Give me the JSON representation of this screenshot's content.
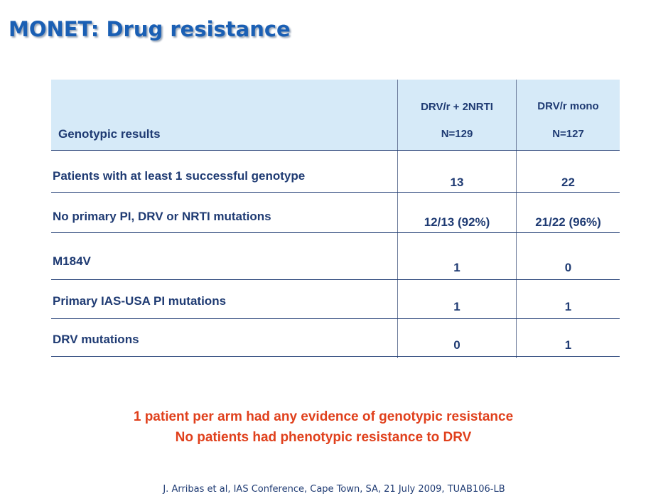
{
  "title": "MONET: Drug resistance",
  "table": {
    "header_label": "Genotypic results",
    "columns": [
      {
        "name": "DRV/r + 2NRTI",
        "n": "N=129"
      },
      {
        "name": "DRV/r mono",
        "n": "N=127"
      }
    ],
    "rows": [
      {
        "label": "Patients with at least 1 successful genotype",
        "values": [
          "13",
          "22"
        ]
      },
      {
        "label": "No primary PI, DRV or NRTI mutations",
        "values": [
          "12/13 (92%)",
          "21/22 (96%)"
        ]
      },
      {
        "label": "M184V",
        "values": [
          "1",
          "0"
        ]
      },
      {
        "label": "Primary IAS-USA PI mutations",
        "values": [
          "1",
          "1"
        ]
      },
      {
        "label": "DRV mutations",
        "values": [
          "0",
          "1"
        ]
      }
    ]
  },
  "notes": [
    "1 patient per arm had any evidence of genotypic resistance",
    "No patients had phenotypic resistance to DRV"
  ],
  "citation": "J. Arribas et al, IAS Conference, Cape Town, SA, 21 July 2009, TUAB106-LB",
  "colors": {
    "title": "#1a5fb4",
    "table_text": "#1f3b73",
    "header_bg": "#d6eaf8",
    "note": "#e0401c"
  }
}
